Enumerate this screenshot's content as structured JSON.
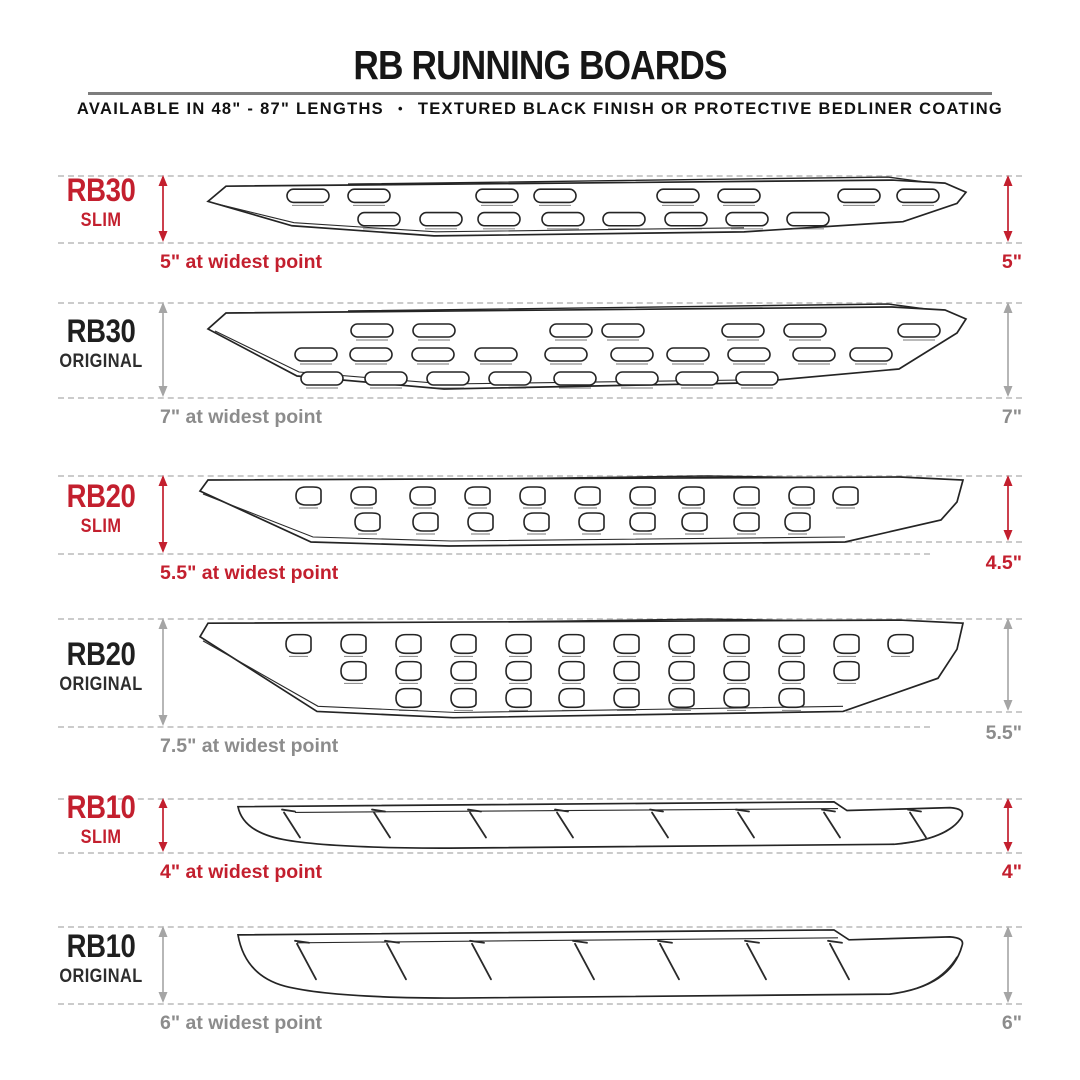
{
  "header": {
    "title": "RB RUNNING BOARDS",
    "subtitle_lengths": "AVAILABLE IN 48\" - 87\" LENGTHS",
    "bullet": "•",
    "subtitle_finish": "TEXTURED BLACK FINISH OR PROTECTIVE BEDLINER COATING"
  },
  "colors": {
    "accent_red": "#c31f2e",
    "neutral_gray": "#8c8c8c",
    "arrow_gray": "#a5a5a5",
    "dash_gray": "#cbcbcb",
    "line_art": "#242424"
  },
  "rows": [
    {
      "id": "rb30-slim",
      "model": "RB30",
      "variant": "SLIM",
      "left_note": "5\" at widest point",
      "right_note": "5\""
    },
    {
      "id": "rb30-original",
      "model": "RB30",
      "variant": "ORIGINAL",
      "left_note": "7\" at widest point",
      "right_note": "7\""
    },
    {
      "id": "rb20-slim",
      "model": "RB20",
      "variant": "SLIM",
      "left_note": "5.5\" at widest point",
      "right_note": "4.5\""
    },
    {
      "id": "rb20-original",
      "model": "RB20",
      "variant": "ORIGINAL",
      "left_note": "7.5\" at widest point",
      "right_note": "5.5\""
    },
    {
      "id": "rb10-slim",
      "model": "RB10",
      "variant": "SLIM",
      "left_note": "4\" at widest point",
      "right_note": "4\""
    },
    {
      "id": "rb10-original",
      "model": "RB10",
      "variant": "ORIGINAL",
      "left_note": "6\" at widest point",
      "right_note": "6\""
    }
  ]
}
